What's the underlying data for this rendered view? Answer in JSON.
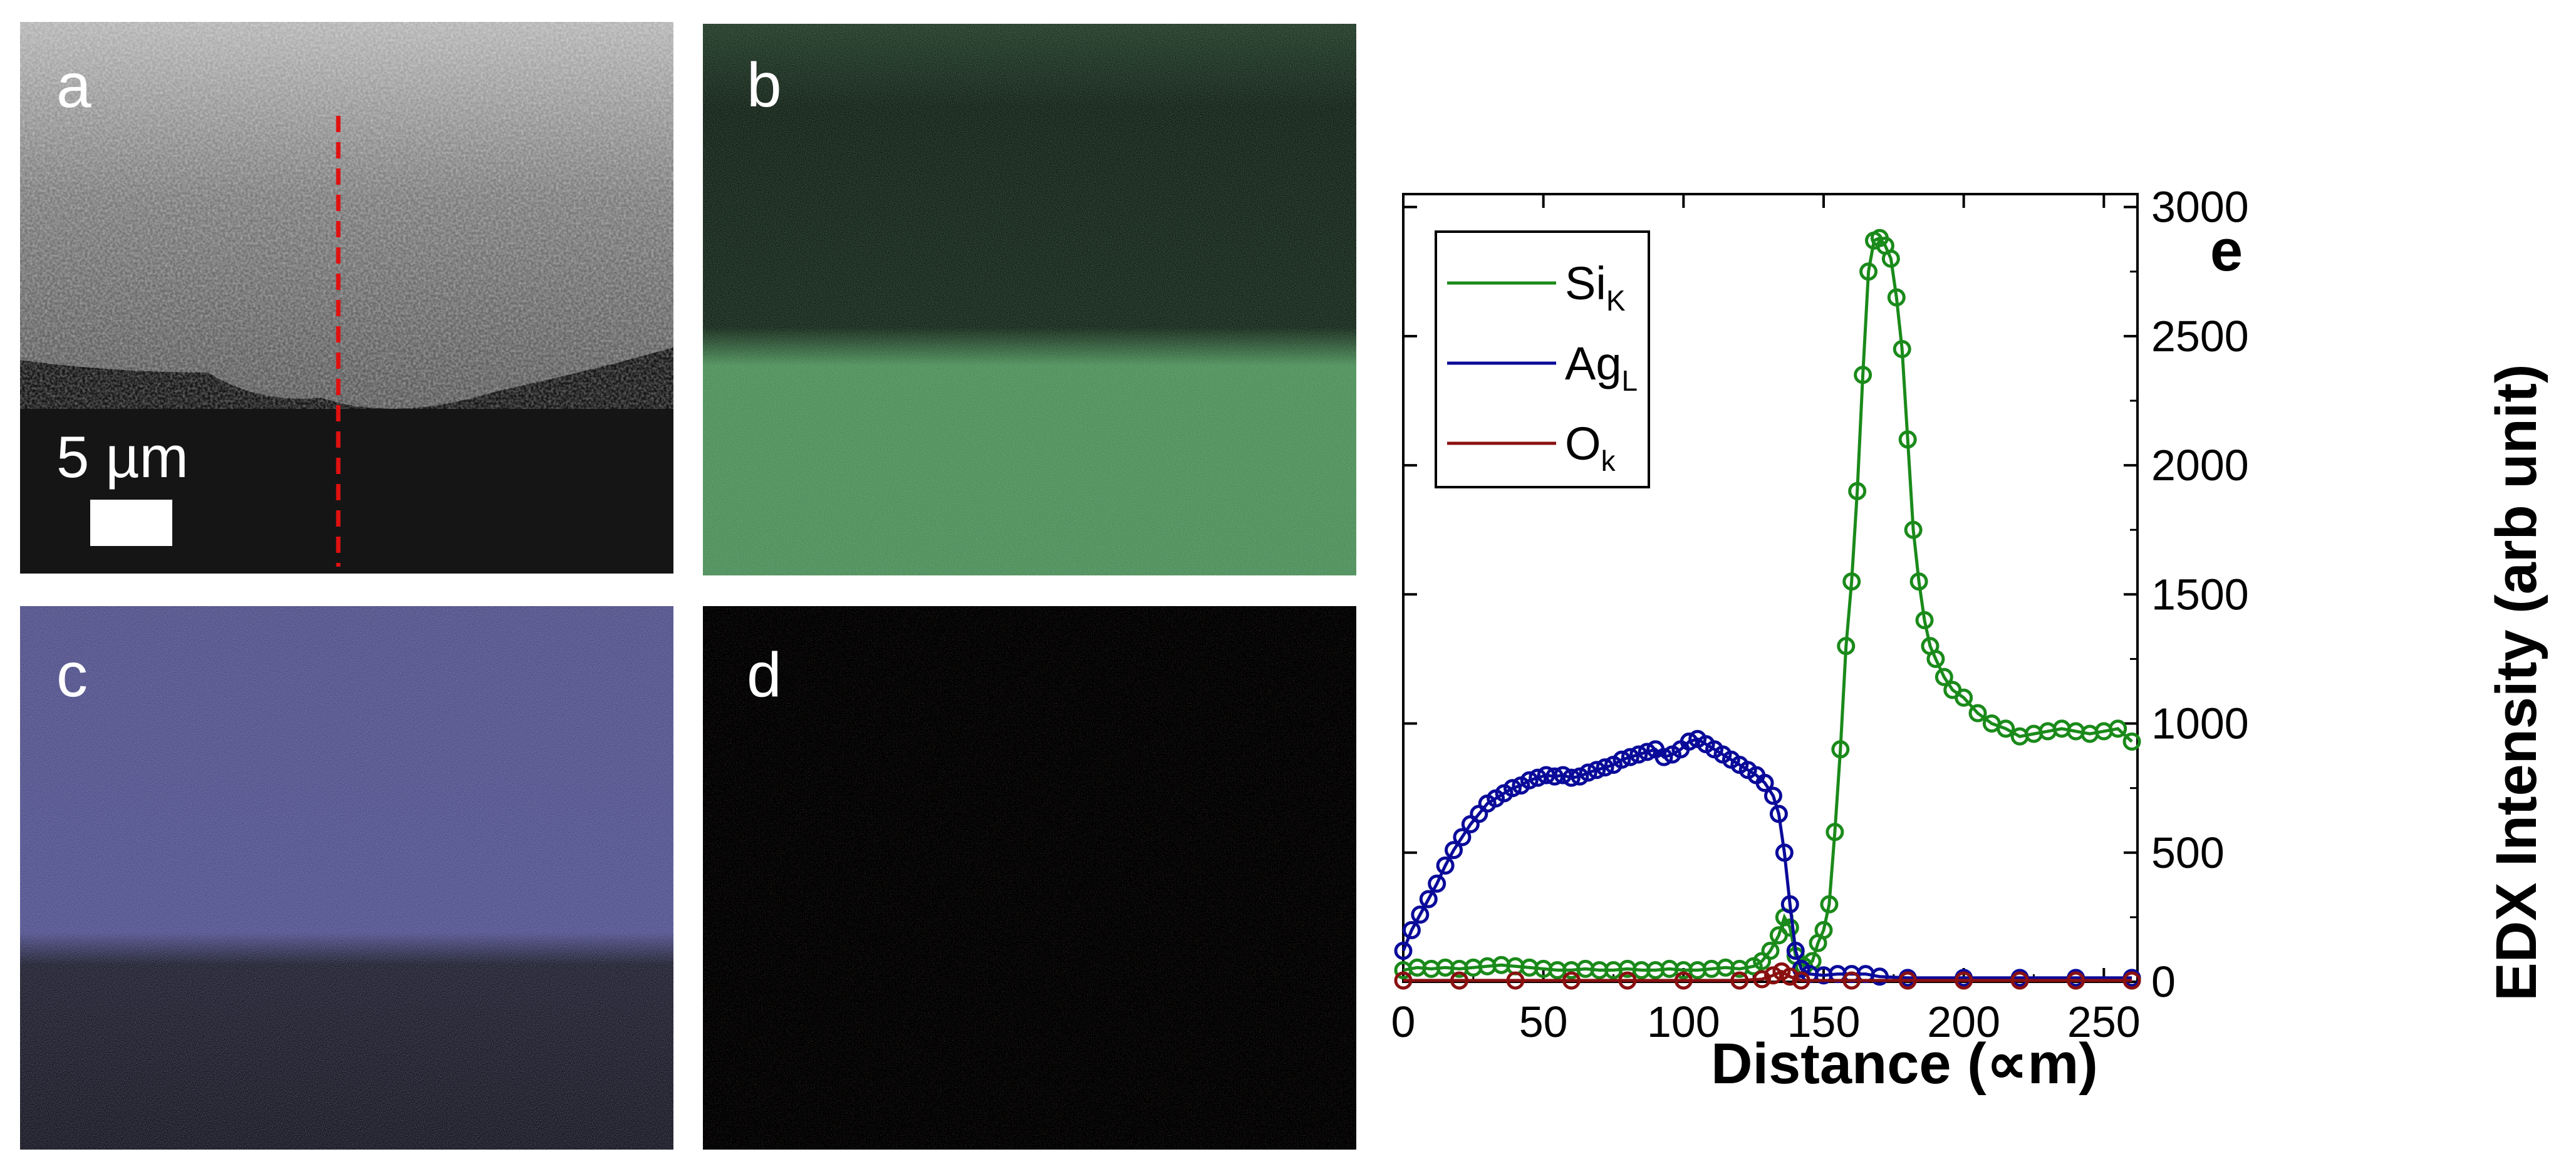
{
  "panels": {
    "a": {
      "label": "a",
      "scale_bar_text": "5 µm"
    },
    "b": {
      "label": "b"
    },
    "c": {
      "label": "c"
    },
    "d": {
      "label": "d"
    }
  },
  "colors": {
    "si": "#1a8a1a",
    "ag": "#0a0a9a",
    "o": "#8a1010",
    "marker_line": "#e01010"
  },
  "chart_data": {
    "type": "line",
    "panel_label": "e",
    "xlabel": "Distance (∝m)",
    "ylabel": "EDX Intensity (arb unit)",
    "xlim": [
      0,
      262
    ],
    "ylim": [
      0,
      3050
    ],
    "xticks": [
      0,
      50,
      100,
      150,
      200,
      250
    ],
    "yticks": [
      0,
      500,
      1000,
      1500,
      2000,
      2500,
      3000
    ],
    "y_axis_position": "right",
    "grid": false,
    "legend_position": "top-left",
    "series": [
      {
        "name": "Si",
        "sub": "K",
        "color_key": "si",
        "points": [
          [
            0,
            45
          ],
          [
            5,
            55
          ],
          [
            10,
            50
          ],
          [
            15,
            55
          ],
          [
            20,
            50
          ],
          [
            25,
            55
          ],
          [
            30,
            60
          ],
          [
            35,
            65
          ],
          [
            40,
            60
          ],
          [
            45,
            55
          ],
          [
            50,
            50
          ],
          [
            55,
            45
          ],
          [
            60,
            45
          ],
          [
            65,
            50
          ],
          [
            70,
            45
          ],
          [
            75,
            45
          ],
          [
            80,
            50
          ],
          [
            85,
            45
          ],
          [
            90,
            45
          ],
          [
            95,
            50
          ],
          [
            100,
            45
          ],
          [
            105,
            45
          ],
          [
            110,
            50
          ],
          [
            115,
            55
          ],
          [
            120,
            50
          ],
          [
            125,
            60
          ],
          [
            128,
            80
          ],
          [
            131,
            120
          ],
          [
            134,
            180
          ],
          [
            136,
            250
          ],
          [
            138,
            210
          ],
          [
            140,
            100
          ],
          [
            143,
            60
          ],
          [
            146,
            80
          ],
          [
            148,
            150
          ],
          [
            150,
            200
          ],
          [
            152,
            300
          ],
          [
            154,
            580
          ],
          [
            156,
            900
          ],
          [
            158,
            1300
          ],
          [
            160,
            1550
          ],
          [
            162,
            1900
          ],
          [
            164,
            2350
          ],
          [
            166,
            2750
          ],
          [
            168,
            2870
          ],
          [
            170,
            2880
          ],
          [
            172,
            2850
          ],
          [
            174,
            2800
          ],
          [
            176,
            2650
          ],
          [
            178,
            2450
          ],
          [
            180,
            2100
          ],
          [
            182,
            1750
          ],
          [
            184,
            1550
          ],
          [
            186,
            1400
          ],
          [
            188,
            1300
          ],
          [
            190,
            1250
          ],
          [
            193,
            1180
          ],
          [
            196,
            1130
          ],
          [
            200,
            1100
          ],
          [
            205,
            1040
          ],
          [
            210,
            1000
          ],
          [
            215,
            980
          ],
          [
            220,
            950
          ],
          [
            225,
            960
          ],
          [
            230,
            970
          ],
          [
            235,
            980
          ],
          [
            240,
            970
          ],
          [
            245,
            960
          ],
          [
            250,
            970
          ],
          [
            255,
            980
          ],
          [
            260,
            930
          ]
        ]
      },
      {
        "name": "Ag",
        "sub": "L",
        "color_key": "ag",
        "points": [
          [
            0,
            120
          ],
          [
            3,
            200
          ],
          [
            6,
            260
          ],
          [
            9,
            320
          ],
          [
            12,
            380
          ],
          [
            15,
            450
          ],
          [
            18,
            510
          ],
          [
            21,
            560
          ],
          [
            24,
            610
          ],
          [
            27,
            650
          ],
          [
            30,
            690
          ],
          [
            33,
            710
          ],
          [
            36,
            730
          ],
          [
            39,
            750
          ],
          [
            42,
            760
          ],
          [
            45,
            780
          ],
          [
            48,
            790
          ],
          [
            51,
            800
          ],
          [
            54,
            795
          ],
          [
            57,
            800
          ],
          [
            60,
            790
          ],
          [
            63,
            795
          ],
          [
            66,
            810
          ],
          [
            69,
            820
          ],
          [
            72,
            830
          ],
          [
            75,
            840
          ],
          [
            78,
            860
          ],
          [
            81,
            870
          ],
          [
            84,
            880
          ],
          [
            87,
            890
          ],
          [
            90,
            900
          ],
          [
            93,
            870
          ],
          [
            96,
            880
          ],
          [
            99,
            900
          ],
          [
            102,
            930
          ],
          [
            105,
            940
          ],
          [
            108,
            920
          ],
          [
            111,
            900
          ],
          [
            114,
            880
          ],
          [
            117,
            860
          ],
          [
            120,
            840
          ],
          [
            123,
            820
          ],
          [
            126,
            800
          ],
          [
            129,
            770
          ],
          [
            132,
            720
          ],
          [
            134,
            650
          ],
          [
            136,
            500
          ],
          [
            138,
            300
          ],
          [
            140,
            120
          ],
          [
            142,
            50
          ],
          [
            145,
            30
          ],
          [
            150,
            25
          ],
          [
            155,
            30
          ],
          [
            160,
            30
          ],
          [
            165,
            30
          ],
          [
            170,
            20
          ],
          [
            180,
            15
          ],
          [
            200,
            15
          ],
          [
            220,
            15
          ],
          [
            240,
            15
          ],
          [
            260,
            15
          ]
        ]
      },
      {
        "name": "O",
        "sub": "k",
        "color_key": "o",
        "points": [
          [
            0,
            5
          ],
          [
            20,
            5
          ],
          [
            40,
            5
          ],
          [
            60,
            5
          ],
          [
            80,
            5
          ],
          [
            100,
            5
          ],
          [
            120,
            5
          ],
          [
            128,
            10
          ],
          [
            132,
            25
          ],
          [
            135,
            40
          ],
          [
            138,
            20
          ],
          [
            142,
            5
          ],
          [
            160,
            5
          ],
          [
            180,
            5
          ],
          [
            200,
            5
          ],
          [
            220,
            5
          ],
          [
            240,
            5
          ],
          [
            260,
            5
          ]
        ]
      }
    ]
  }
}
